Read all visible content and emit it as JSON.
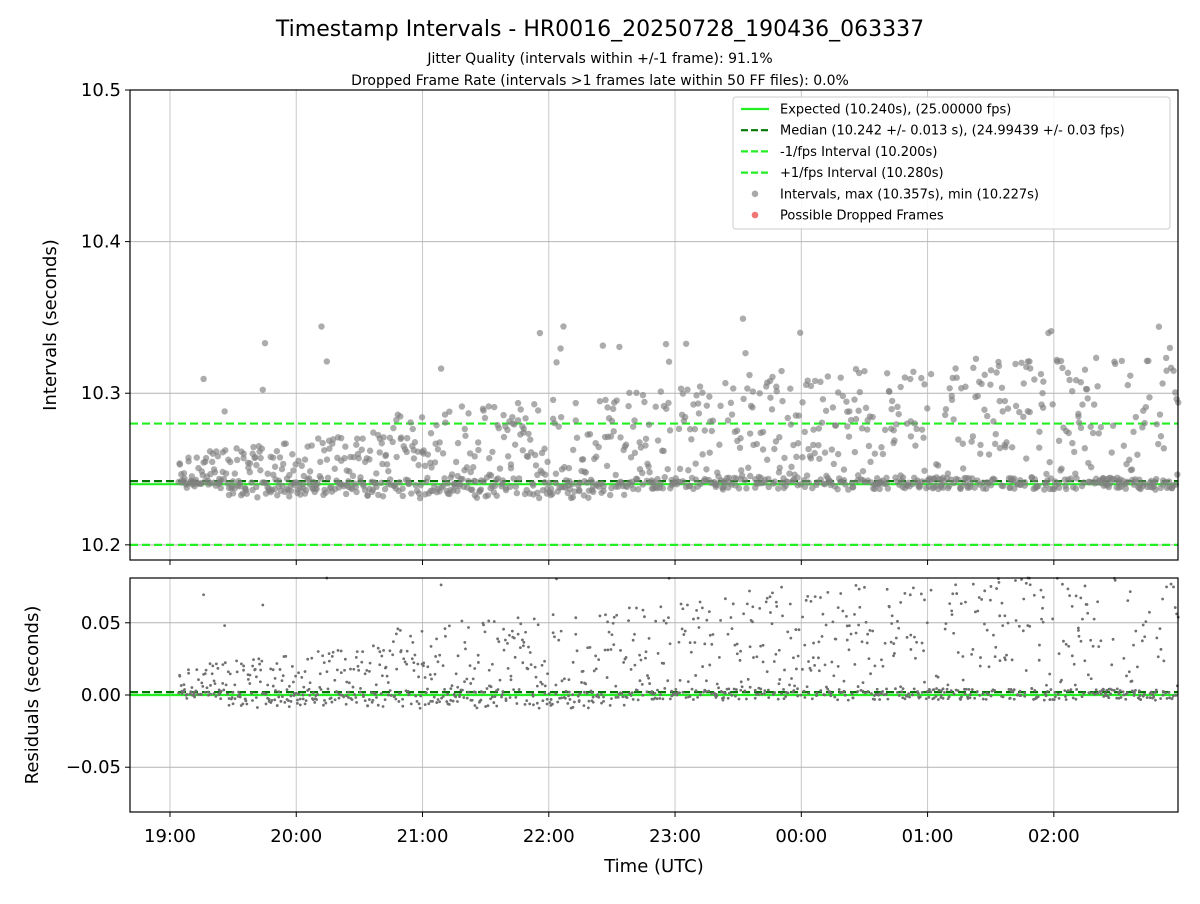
{
  "chart_data": {
    "type": "scatter",
    "title": "Timestamp Intervals - HR0016_20250728_190436_063337",
    "subtitle_lines": [
      "Jitter Quality (intervals within +/-1 frame): 91.1%",
      "Dropped Frame Rate (intervals >1 frames late within 50 FF files): 0.0%"
    ],
    "xlabel": "Time (UTC)",
    "x_ticks": [
      "19:00",
      "20:00",
      "21:00",
      "22:00",
      "23:00",
      "00:00",
      "01:00",
      "02:00"
    ],
    "x_start": "2025-07-28 19:04",
    "x_end": "2025-07-29 02:59",
    "xlim": [
      "2025-07-28 18:41",
      "2025-07-29 02:59"
    ],
    "grid": true,
    "legend_position": "top-right",
    "panels": [
      {
        "id": "intervals",
        "ylabel": "Intervals (seconds)",
        "ylim": [
          10.19,
          10.5
        ],
        "y_ticks": [
          "10.2",
          "10.3",
          "10.4",
          "10.5"
        ],
        "reference_lines": [
          {
            "name": "Expected",
            "value": 10.24,
            "color": "#22ee22",
            "style": "solid"
          },
          {
            "name": "Median",
            "value": 10.242,
            "color": "#007700",
            "style": "dashed"
          },
          {
            "name": "-1/fps Interval",
            "value": 10.2,
            "color": "#22ee22",
            "style": "dashed"
          },
          {
            "name": "+1/fps Interval",
            "value": 10.28,
            "color": "#22ee22",
            "style": "dashed"
          }
        ],
        "scatter_series": [
          {
            "name": "Intervals",
            "color": "#808080",
            "max": 10.357,
            "min": 10.227,
            "baseline": 10.24
          },
          {
            "name": "Possible Dropped Frames",
            "color": "#ee5555",
            "count": 0
          }
        ],
        "legend": [
          {
            "label": "Expected (10.240s), (25.00000 fps)",
            "kind": "line",
            "color": "#22ee22",
            "dash": false
          },
          {
            "label": "Median (10.242 +/- 0.013 s), (24.99439 +/- 0.03 fps)",
            "kind": "line",
            "color": "#007700",
            "dash": true
          },
          {
            "label": "-1/fps Interval (10.200s)",
            "kind": "line",
            "color": "#22ee22",
            "dash": true
          },
          {
            "label": "+1/fps Interval (10.280s)",
            "kind": "line",
            "color": "#22ee22",
            "dash": true
          },
          {
            "label": "Intervals, max (10.357s), min (10.227s)",
            "kind": "dot",
            "color": "#a0a0a0"
          },
          {
            "label": "Possible Dropped Frames",
            "kind": "dot",
            "color": "#ee6666"
          }
        ]
      },
      {
        "id": "residuals",
        "ylabel": "Residuals (seconds)",
        "ylim": [
          -0.081,
          0.081
        ],
        "y_ticks": [
          "−0.05",
          "0.00",
          "0.05"
        ],
        "reference_lines": [
          {
            "name": "Expected",
            "value": 0.0,
            "color": "#22ee22",
            "style": "solid"
          },
          {
            "name": "Median",
            "value": 0.002,
            "color": "#007700",
            "style": "dashed"
          }
        ],
        "scatter_series": [
          {
            "name": "Residuals",
            "color": "#707070",
            "baseline": 0.0
          }
        ]
      }
    ]
  }
}
